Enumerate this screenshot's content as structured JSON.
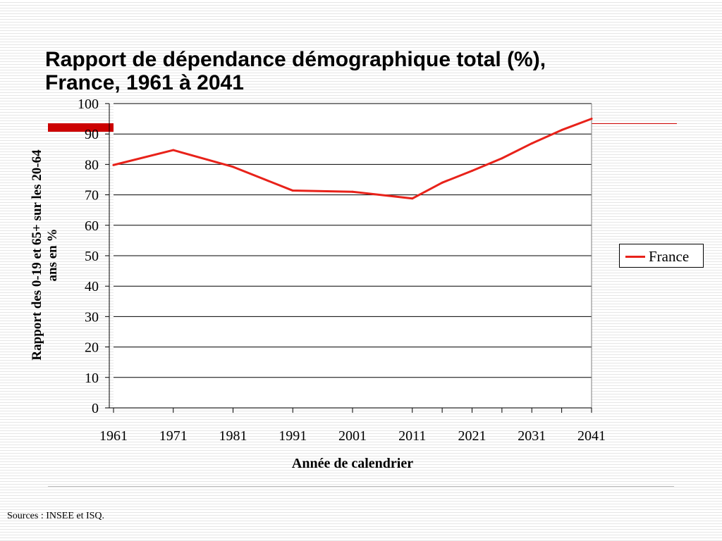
{
  "slide": {
    "title_line1": "Rapport de dépendance démographique total (%),",
    "title_line2": "France, 1961 à 2041",
    "source": "Sources : INSEE et ISQ."
  },
  "colors": {
    "series": "#e8221a",
    "accent": "#cc0000"
  },
  "chart_data": {
    "type": "line",
    "x": [
      1961,
      1971,
      1981,
      1991,
      2001,
      2011,
      2016,
      2021,
      2026,
      2031,
      2036,
      2041
    ],
    "xticklabels": [
      "1961",
      "1971",
      "1981",
      "1991",
      "2001",
      "2011",
      "2021",
      "2031",
      "2041"
    ],
    "xlim": [
      1961,
      2041
    ],
    "ylim": [
      0,
      100
    ],
    "yticks": [
      0,
      10,
      20,
      30,
      40,
      50,
      60,
      70,
      80,
      90,
      100
    ],
    "series": [
      {
        "name": "France",
        "values": [
          79.8,
          84.7,
          79.2,
          71.4,
          71.0,
          68.8,
          74.0,
          77.9,
          82.0,
          86.9,
          91.3,
          95.0
        ]
      }
    ],
    "title": "",
    "xlabel": "Année de calendrier",
    "ylabel": "Rapport des 0-19 et 65+ sur les 20-64 ans en %",
    "grid": "horizontal",
    "legend": "right"
  }
}
